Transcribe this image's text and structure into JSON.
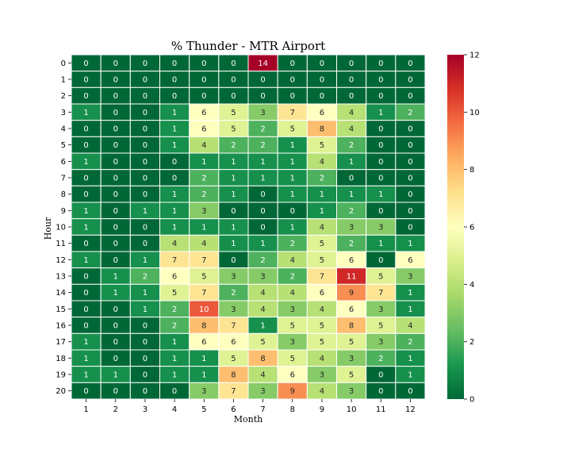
{
  "chart_data": {
    "type": "heatmap",
    "title": "% Thunder - MTR Airport",
    "xlabel": "Month",
    "ylabel": "Hour",
    "x_categories": [
      "1",
      "2",
      "3",
      "4",
      "5",
      "6",
      "7",
      "8",
      "9",
      "10",
      "11",
      "12"
    ],
    "y_categories": [
      "0",
      "1",
      "2",
      "3",
      "4",
      "5",
      "6",
      "7",
      "8",
      "9",
      "10",
      "11",
      "12",
      "13",
      "14",
      "15",
      "16",
      "17",
      "18",
      "19",
      "20"
    ],
    "values": [
      [
        0,
        0,
        0,
        0,
        0,
        0,
        14,
        0,
        0,
        0,
        0,
        0
      ],
      [
        0,
        0,
        0,
        0,
        0,
        0,
        0,
        0,
        0,
        0,
        0,
        0
      ],
      [
        0,
        0,
        0,
        0,
        0,
        0,
        0,
        0,
        0,
        0,
        0,
        0
      ],
      [
        1,
        0,
        0,
        1,
        6,
        5,
        3,
        7,
        6,
        4,
        1,
        2
      ],
      [
        0,
        0,
        0,
        1,
        6,
        5,
        2,
        5,
        8,
        4,
        0,
        0
      ],
      [
        0,
        0,
        0,
        1,
        4,
        2,
        2,
        1,
        5,
        2,
        0,
        0
      ],
      [
        1,
        0,
        0,
        0,
        1,
        1,
        1,
        1,
        4,
        1,
        0,
        0
      ],
      [
        0,
        0,
        0,
        0,
        2,
        1,
        1,
        1,
        2,
        0,
        0,
        0
      ],
      [
        0,
        0,
        0,
        1,
        2,
        1,
        0,
        1,
        1,
        1,
        1,
        0
      ],
      [
        1,
        0,
        1,
        1,
        3,
        0,
        0,
        0,
        1,
        2,
        0,
        0
      ],
      [
        1,
        0,
        0,
        1,
        1,
        1,
        0,
        1,
        4,
        3,
        3,
        0
      ],
      [
        0,
        0,
        0,
        4,
        4,
        1,
        1,
        2,
        5,
        2,
        1,
        1
      ],
      [
        1,
        0,
        1,
        7,
        7,
        0,
        2,
        4,
        5,
        6,
        0,
        6
      ],
      [
        0,
        1,
        2,
        6,
        5,
        3,
        3,
        2,
        7,
        11,
        5,
        3
      ],
      [
        0,
        1,
        1,
        5,
        7,
        2,
        4,
        4,
        6,
        9,
        7,
        1
      ],
      [
        0,
        0,
        1,
        2,
        10,
        3,
        4,
        3,
        4,
        6,
        3,
        1
      ],
      [
        0,
        0,
        0,
        2,
        8,
        7,
        1,
        5,
        5,
        8,
        5,
        4
      ],
      [
        1,
        0,
        0,
        1,
        6,
        6,
        5,
        3,
        5,
        5,
        3,
        2
      ],
      [
        1,
        0,
        0,
        1,
        1,
        5,
        8,
        5,
        4,
        3,
        2,
        1
      ],
      [
        1,
        1,
        0,
        1,
        1,
        8,
        4,
        6,
        3,
        5,
        0,
        1
      ],
      [
        0,
        0,
        0,
        0,
        3,
        7,
        3,
        9,
        4,
        3,
        0,
        0
      ]
    ],
    "colorbar": {
      "min": 0,
      "max": 12,
      "ticks": [
        "0",
        "2",
        "4",
        "6",
        "8",
        "10",
        "12"
      ]
    },
    "colormap": "RdYlGn_r",
    "annotated": true
  }
}
